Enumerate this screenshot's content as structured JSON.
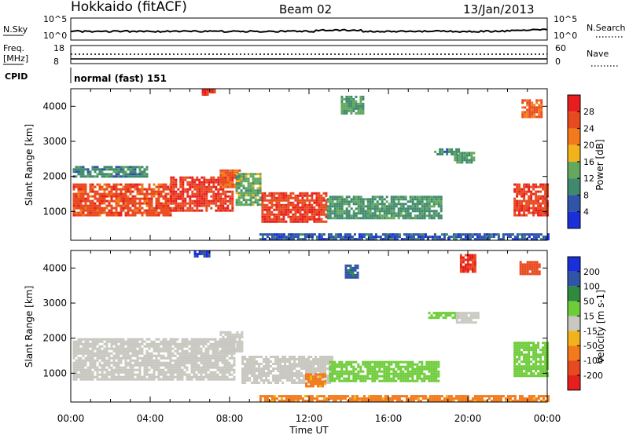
{
  "header": {
    "station": "Hokkaido (fitACF)",
    "beam": "Beam 02",
    "date": "13/Jan/2013"
  },
  "top_panels": {
    "nsky": {
      "label": "N.Sky",
      "ticks": [
        "10^5",
        "10^0"
      ],
      "right_ticks": [
        "10^5",
        "10^0"
      ],
      "right_label": "N.Search"
    },
    "freq": {
      "label_line1": "Freq.",
      "label_line2": "[MHz]",
      "ticks": [
        "18",
        "8"
      ],
      "right_ticks": [
        "60",
        "0"
      ],
      "right_label": "Nave"
    },
    "cpid": {
      "label": "CPID",
      "text": "normal (fast) 151"
    }
  },
  "x_axis": {
    "label": "Time UT",
    "ticks": [
      "00:00",
      "04:00",
      "08:00",
      "12:00",
      "16:00",
      "20:00",
      "00:00"
    ]
  },
  "colors": {
    "power": [
      "#1a2fd9",
      "#2f55a8",
      "#3f8a6e",
      "#63a85c",
      "#f2b31a",
      "#f27a1a",
      "#e84a1f",
      "#e81e1e"
    ],
    "velocity": [
      "#1a2fd9",
      "#2f55a8",
      "#2f8a3f",
      "#6ecc3a",
      "#c8c8c0",
      "#f2b31a",
      "#f27a1a",
      "#e84a1f",
      "#e81e1e"
    ]
  },
  "chart_data": [
    {
      "type": "heatmap",
      "title": "",
      "xlabel": "",
      "ylabel": "Slant Range [km]",
      "xlim": [
        0,
        24
      ],
      "ylim": [
        180,
        4500
      ],
      "yticks": [
        "1000",
        "2000",
        "3000",
        "4000"
      ],
      "colorbar": {
        "label": "Power [dB]",
        "ticks": [
          "4",
          "8",
          "12",
          "16",
          "20",
          "24",
          "28"
        ]
      },
      "regions": [
        {
          "t0": 0.1,
          "t1": 5.0,
          "r0": 900,
          "r1": 1800,
          "value": 26
        },
        {
          "t0": 5.0,
          "t1": 8.2,
          "r0": 1000,
          "r1": 2000,
          "value": 28
        },
        {
          "t0": 7.5,
          "t1": 8.5,
          "r0": 1700,
          "r1": 2200,
          "value": 24
        },
        {
          "t0": 8.3,
          "t1": 9.6,
          "r0": 1200,
          "r1": 2100,
          "value": 14
        },
        {
          "t0": 9.6,
          "t1": 12.9,
          "r0": 700,
          "r1": 1550,
          "value": 27
        },
        {
          "t0": 12.9,
          "t1": 18.7,
          "r0": 800,
          "r1": 1450,
          "value": 11
        },
        {
          "t0": 13.6,
          "t1": 14.7,
          "r0": 3800,
          "r1": 4300,
          "value": 13
        },
        {
          "t0": 18.3,
          "t1": 19.6,
          "r0": 2600,
          "r1": 2800,
          "value": 10
        },
        {
          "t0": 19.3,
          "t1": 20.3,
          "r0": 2400,
          "r1": 2700,
          "value": 12
        },
        {
          "t0": 22.3,
          "t1": 24,
          "r0": 900,
          "r1": 1800,
          "value": 27
        },
        {
          "t0": 22.7,
          "t1": 23.7,
          "r0": 3700,
          "r1": 4200,
          "value": 24
        },
        {
          "t0": 0.1,
          "t1": 3.8,
          "r0": 2000,
          "r1": 2300,
          "value": 10
        },
        {
          "t0": 6.6,
          "t1": 7.2,
          "r0": 4300,
          "r1": 4500,
          "value": 28
        },
        {
          "t0": 9.5,
          "t1": 24,
          "r0": 220,
          "r1": 380,
          "value": 6
        }
      ]
    },
    {
      "type": "heatmap",
      "title": "",
      "xlabel": "Time UT",
      "ylabel": "Slant Range [km]",
      "xlim": [
        0,
        24
      ],
      "ylim": [
        180,
        4500
      ],
      "yticks": [
        "1000",
        "2000",
        "3000",
        "4000"
      ],
      "colorbar": {
        "label": "Velocity [m s-1]",
        "ticks": [
          "200",
          "100",
          "50",
          "15",
          "-15",
          "-50",
          "-100",
          "-200"
        ]
      },
      "regions": [
        {
          "t0": 0.1,
          "t1": 8.2,
          "r0": 800,
          "r1": 2000,
          "value": 0
        },
        {
          "t0": 7.5,
          "t1": 8.6,
          "r0": 1600,
          "r1": 2200,
          "value": 0
        },
        {
          "t0": 8.6,
          "t1": 13.2,
          "r0": 700,
          "r1": 1500,
          "value": 0
        },
        {
          "t0": 11.8,
          "t1": 12.8,
          "r0": 650,
          "r1": 1000,
          "value": -60
        },
        {
          "t0": 13.0,
          "t1": 18.5,
          "r0": 750,
          "r1": 1350,
          "value": 40
        },
        {
          "t0": 18.0,
          "t1": 19.5,
          "r0": 2550,
          "r1": 2750,
          "value": 40
        },
        {
          "t0": 19.4,
          "t1": 20.5,
          "r0": 2450,
          "r1": 2750,
          "value": 0
        },
        {
          "t0": 22.3,
          "t1": 24,
          "r0": 900,
          "r1": 1900,
          "value": 40
        },
        {
          "t0": 13.8,
          "t1": 14.4,
          "r0": 3700,
          "r1": 4100,
          "value": 120
        },
        {
          "t0": 19.6,
          "t1": 20.4,
          "r0": 3900,
          "r1": 4400,
          "value": -200
        },
        {
          "t0": 22.6,
          "t1": 23.6,
          "r0": 3800,
          "r1": 4200,
          "value": -150
        },
        {
          "t0": 6.2,
          "t1": 7.0,
          "r0": 4350,
          "r1": 4500,
          "value": 200
        },
        {
          "t0": 9.5,
          "t1": 24,
          "r0": 220,
          "r1": 380,
          "value": -60
        }
      ]
    }
  ]
}
